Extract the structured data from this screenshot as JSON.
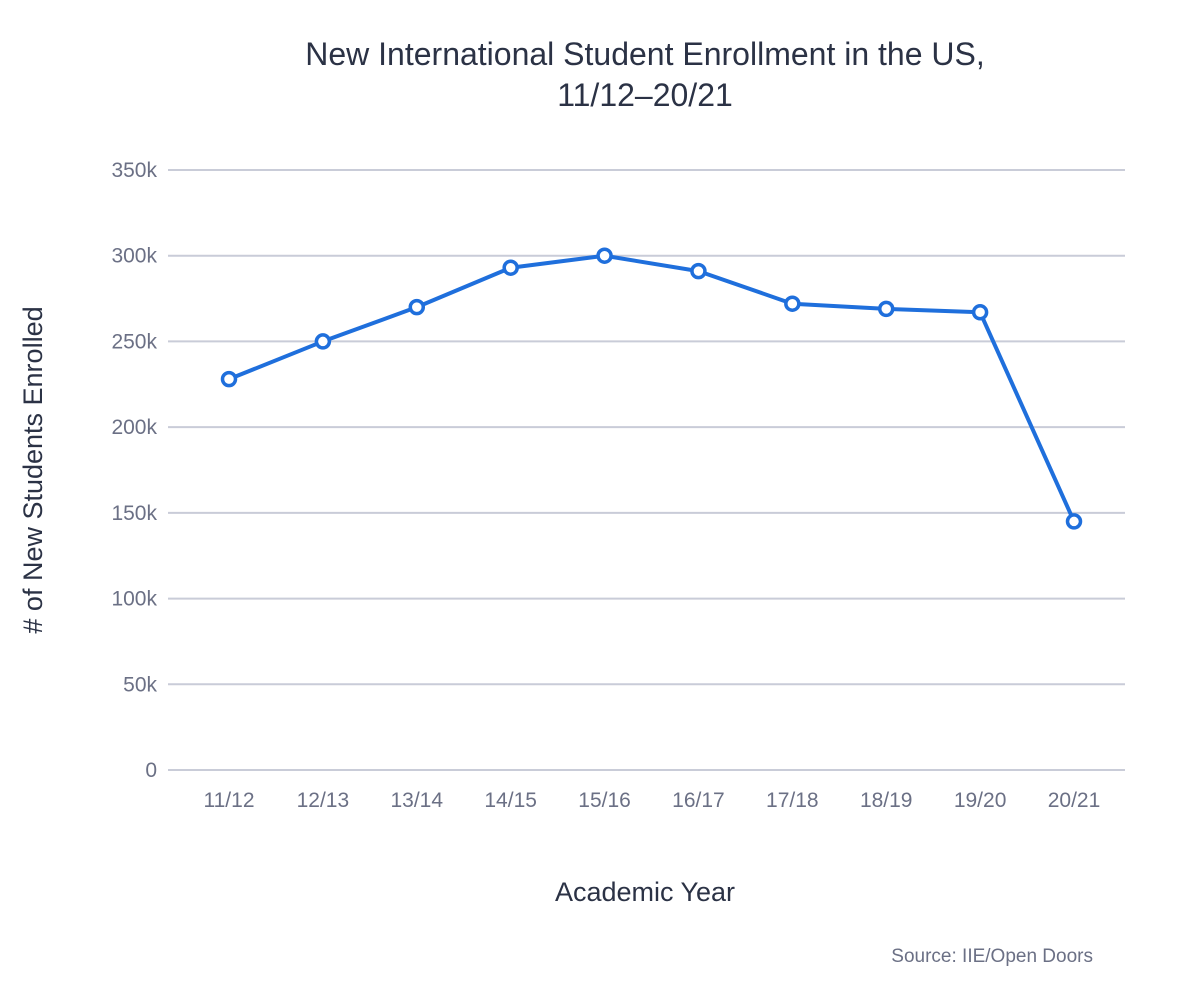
{
  "chart_data": {
    "type": "line",
    "title": [
      "New International Student Enrollment in the US,",
      "11/12–20/21"
    ],
    "xlabel": "Academic Year",
    "ylabel": "# of New Students Enrolled",
    "source": "Source: IIE/Open Doors",
    "categories": [
      "11/12",
      "12/13",
      "13/14",
      "14/15",
      "15/16",
      "16/17",
      "17/18",
      "18/19",
      "19/20",
      "20/21"
    ],
    "series": [
      {
        "values": [
          228000,
          250000,
          270000,
          293000,
          300000,
          291000,
          272000,
          269000,
          267000,
          145000
        ]
      }
    ],
    "ylim": [
      0,
      350000
    ],
    "yticks": [
      0,
      50000,
      100000,
      150000,
      200000,
      250000,
      300000,
      350000
    ],
    "ytick_labels": [
      "0",
      "50k",
      "100k",
      "150k",
      "200k",
      "250k",
      "300k",
      "350k"
    ],
    "grid": true,
    "line_color": "#1f6fdc",
    "legend": false
  }
}
